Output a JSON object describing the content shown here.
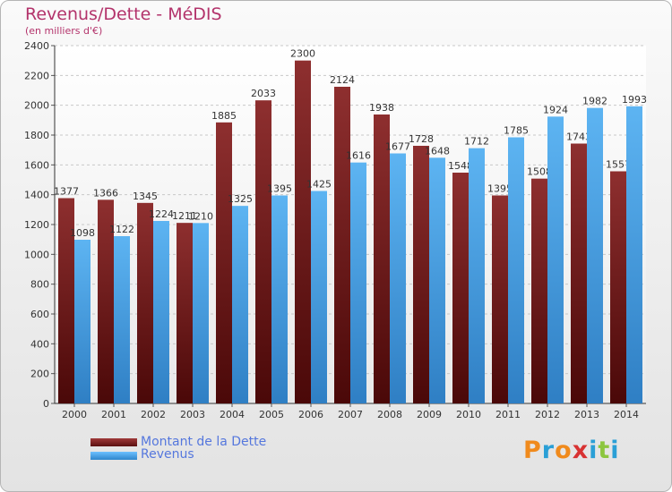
{
  "chart_data": {
    "type": "bar",
    "title": "Revenus/Dette - MéDIS",
    "subtitle": "(en milliers d'€)",
    "categories": [
      "2000",
      "2001",
      "2002",
      "2003",
      "2004",
      "2005",
      "2006",
      "2007",
      "2008",
      "2009",
      "2010",
      "2011",
      "2012",
      "2013",
      "2014"
    ],
    "series": [
      {
        "name": "Montant de la Dette",
        "values": [
          1377,
          1366,
          1345,
          1211,
          1885,
          2033,
          2300,
          2124,
          1938,
          1728,
          1548,
          1395,
          1508,
          1743,
          1557
        ],
        "color": "#7a2222"
      },
      {
        "name": "Revenus",
        "values": [
          1098,
          1122,
          1224,
          1210,
          1325,
          1395,
          1425,
          1616,
          1677,
          1648,
          1712,
          1785,
          1924,
          1982,
          1993
        ],
        "color": "#4aa3e6"
      }
    ],
    "ylim": [
      0,
      2400
    ],
    "yticks": [
      0,
      200,
      400,
      600,
      800,
      1000,
      1200,
      1400,
      1600,
      1800,
      2000,
      2200,
      2400
    ],
    "grid": true,
    "legend": "bottom-left"
  },
  "legend": [
    {
      "label": "Montant de la Dette",
      "color": "#7a2222"
    },
    {
      "label": "Revenus",
      "color": "#4aa3e6"
    }
  ],
  "logo": "Proxiti"
}
